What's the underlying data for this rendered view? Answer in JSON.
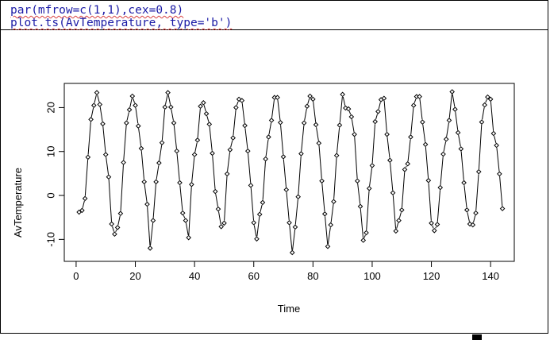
{
  "editor": {
    "lines": [
      "par(mfrow=c(1,1),cex=0.8)",
      "plot.ts(AvTemperature, type='b')"
    ]
  },
  "chart_data": {
    "type": "line",
    "style": "points-and-lines",
    "xlabel": "Time",
    "ylabel": "AvTemperature",
    "xlim": [
      -4,
      148
    ],
    "ylim": [
      -15,
      25.5
    ],
    "xticks": [
      0,
      20,
      40,
      60,
      80,
      100,
      120,
      140
    ],
    "yticks": [
      -10,
      0,
      10,
      20
    ],
    "x_start": 1,
    "x_step": 1,
    "values": [
      -3.8,
      -3.4,
      -0.7,
      8.7,
      17.3,
      20.5,
      23.4,
      20.7,
      16.3,
      9.3,
      4.2,
      -6.5,
      -8.8,
      -7.3,
      -4.1,
      7.5,
      16.5,
      19.5,
      22.6,
      20.5,
      15.8,
      10.7,
      3.1,
      -2.0,
      -12.0,
      -5.7,
      3.1,
      7.4,
      12.0,
      20.1,
      23.4,
      20.1,
      16.5,
      10.1,
      2.9,
      -4.0,
      -5.7,
      -9.6,
      2.5,
      9.3,
      12.6,
      20.3,
      21.1,
      18.6,
      16.2,
      9.6,
      0.9,
      -3.1,
      -7.1,
      -6.3,
      4.9,
      10.4,
      13.1,
      20.0,
      21.9,
      21.6,
      15.9,
      10.1,
      2.3,
      -6.2,
      -9.9,
      -4.3,
      -1.6,
      8.3,
      13.3,
      17.1,
      22.3,
      22.3,
      16.6,
      8.8,
      1.3,
      -6.2,
      -13.0,
      -7.2,
      -0.3,
      9.5,
      16.5,
      20.3,
      22.6,
      21.9,
      16.1,
      11.9,
      3.3,
      -4.2,
      -11.6,
      -6.7,
      -1.4,
      9.1,
      16.0,
      23.0,
      19.9,
      19.7,
      17.9,
      13.9,
      3.3,
      -2.5,
      -10.2,
      -8.5,
      1.6,
      6.8,
      16.8,
      19.1,
      21.8,
      22.1,
      13.9,
      8.0,
      0.6,
      -8.1,
      -5.7,
      -3.3,
      5.9,
      7.2,
      13.3,
      20.5,
      22.5,
      22.5,
      16.7,
      11.6,
      3.4,
      -6.3,
      -8.0,
      -6.6,
      1.8,
      9.4,
      12.8,
      17.1,
      23.6,
      19.6,
      14.3,
      10.6,
      2.9,
      -3.3,
      -6.5,
      -6.7,
      -4.0,
      5.4,
      16.7,
      20.6,
      22.4,
      21.9,
      14.1,
      11.4,
      4.9,
      -3.0
    ]
  }
}
